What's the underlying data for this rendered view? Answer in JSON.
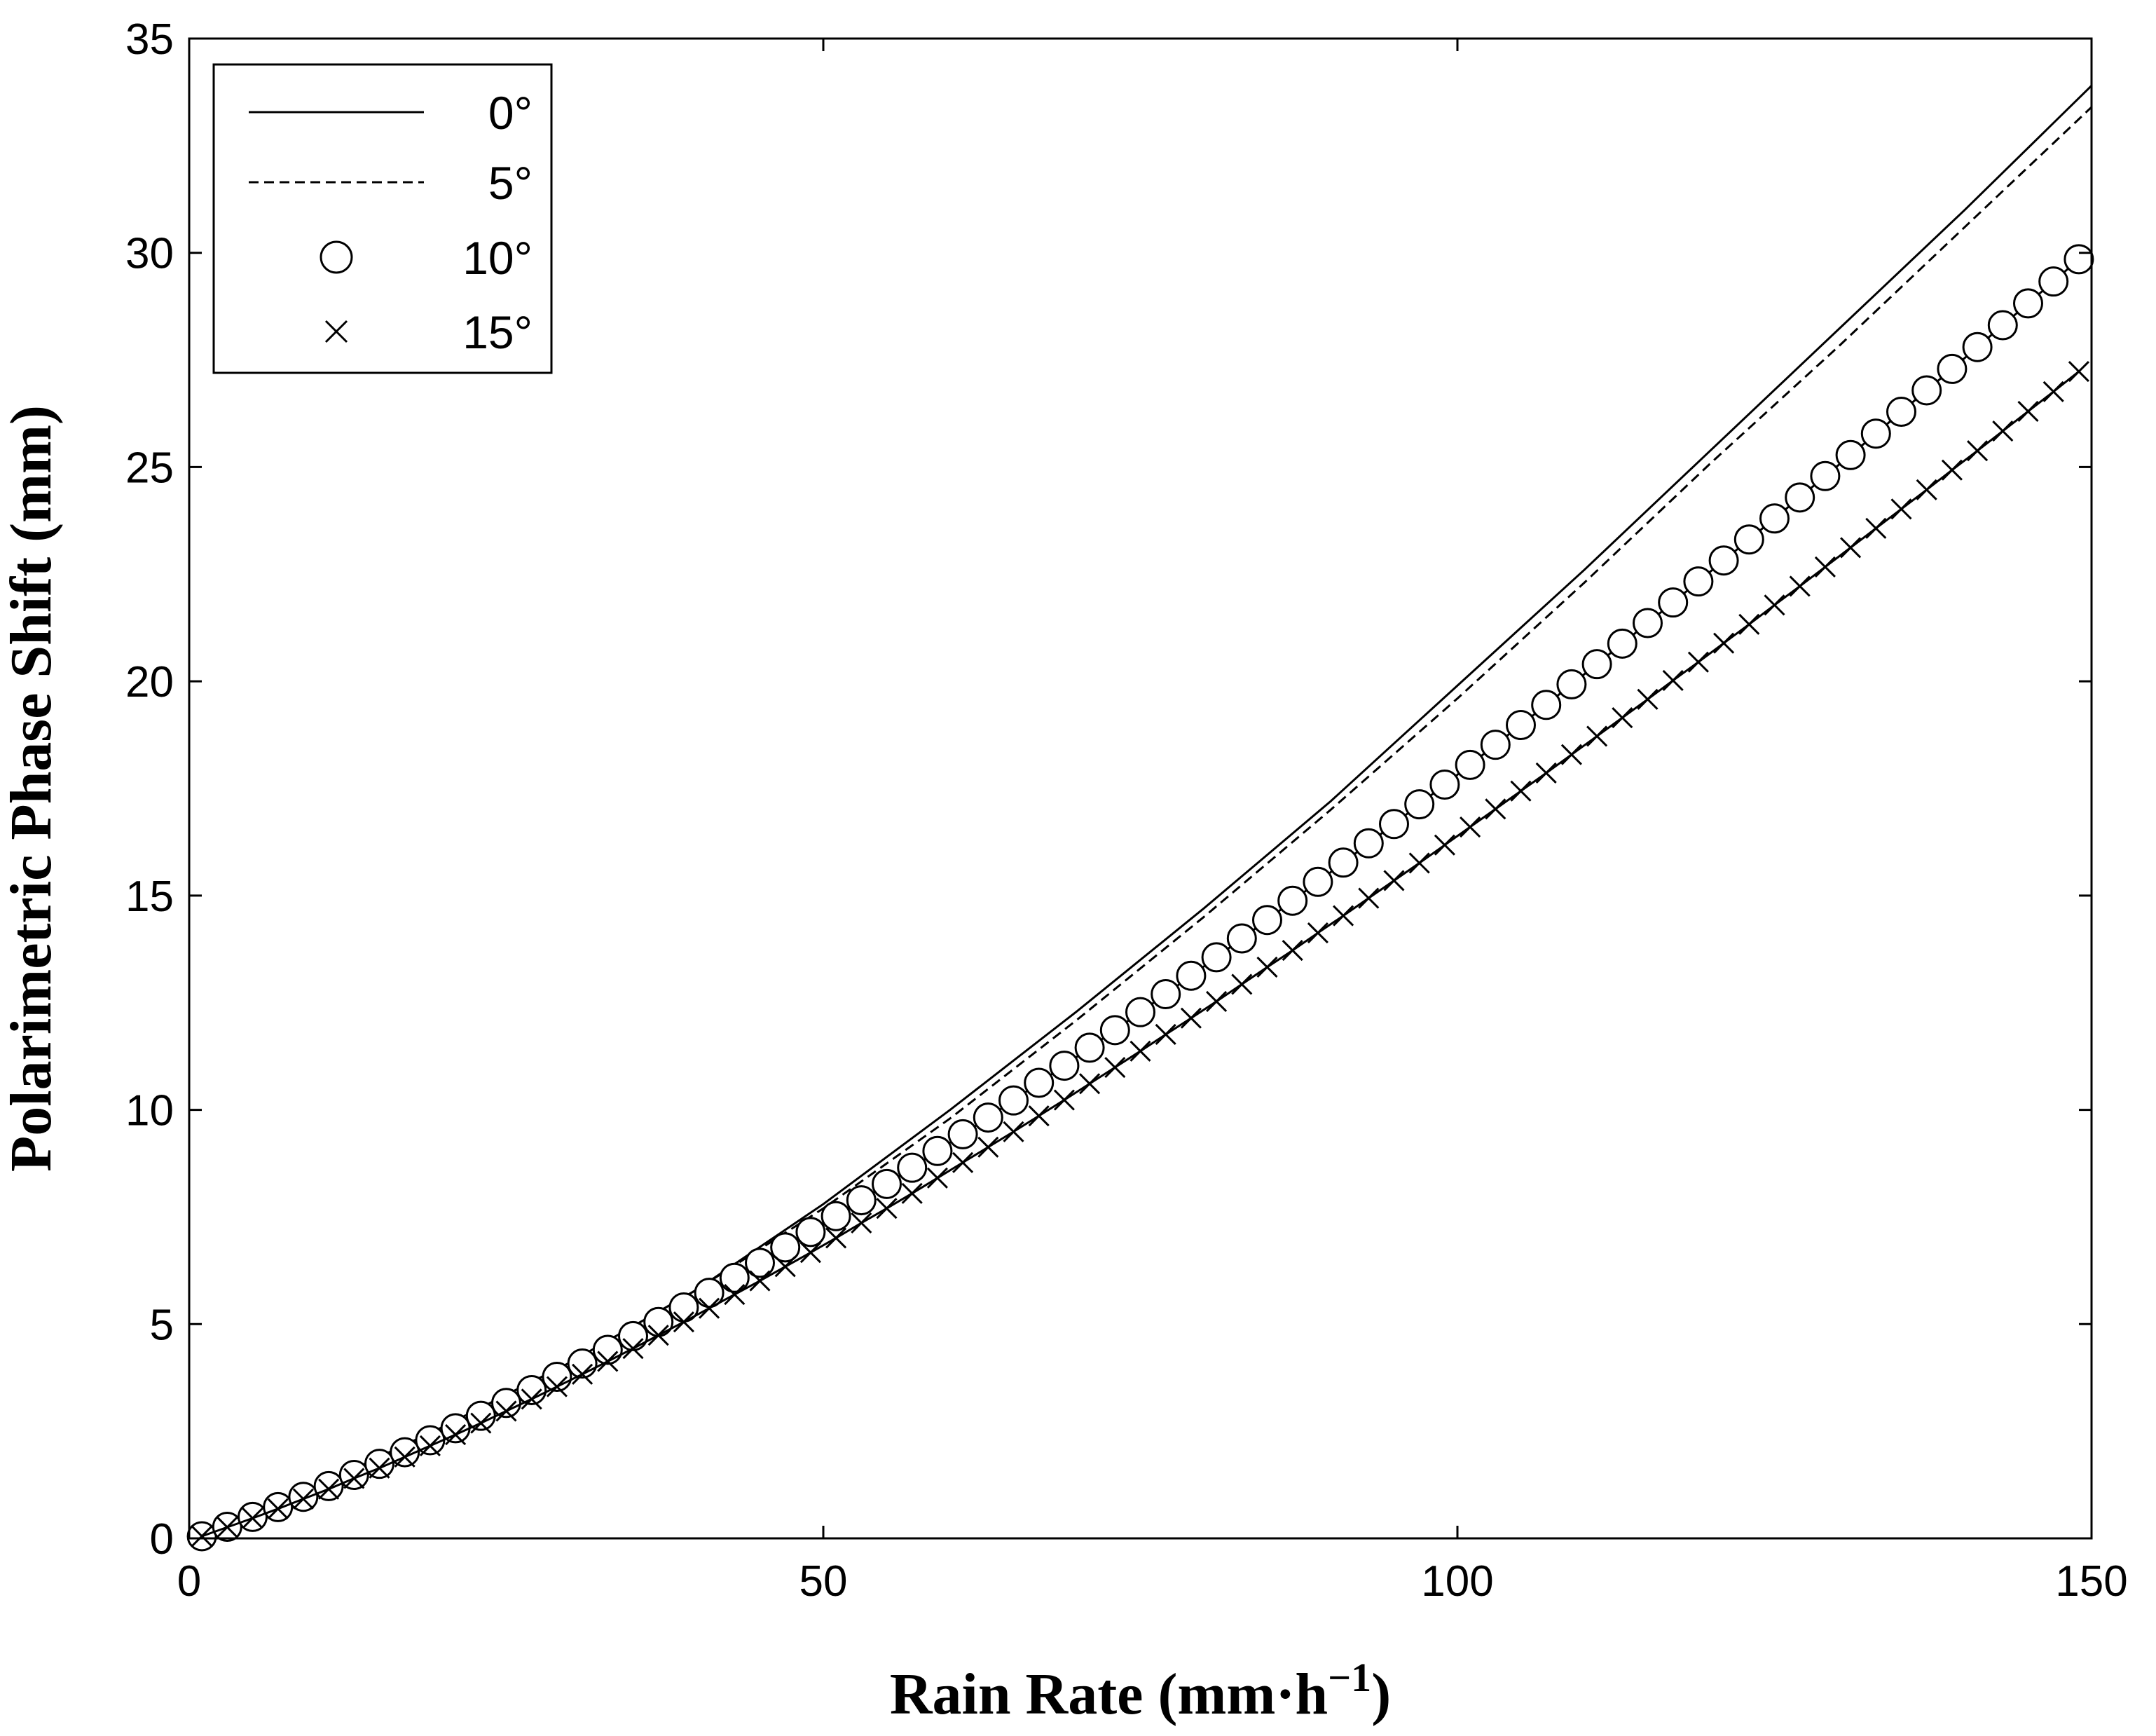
{
  "chart_data": {
    "type": "line",
    "xlabel": "Rain Rate (mm·h",
    "xlabel_superscript": "−1",
    "xlabel_suffix": ")",
    "ylabel": "Polarimetric Phase Shift (mm)",
    "xlim": [
      0,
      150
    ],
    "ylim": [
      0,
      35
    ],
    "x_ticks": [
      "0",
      "50",
      "100",
      "150"
    ],
    "y_ticks": [
      "0",
      "5",
      "10",
      "15",
      "20",
      "25",
      "30",
      "35"
    ],
    "grid": false,
    "legend_position": "top-left",
    "series": [
      {
        "name": "0°",
        "style": "solid",
        "x": [
          0,
          10,
          20,
          30,
          40,
          50,
          60,
          70,
          80,
          90,
          100,
          110,
          120,
          130,
          140,
          150
        ],
        "y": [
          0,
          1.2,
          2.6,
          4.1,
          5.8,
          7.8,
          10.0,
          12.3,
          14.7,
          17.2,
          19.9,
          22.6,
          25.4,
          28.2,
          31.0,
          33.9
        ]
      },
      {
        "name": "5°",
        "style": "dashed",
        "x": [
          0,
          10,
          20,
          30,
          40,
          50,
          60,
          70,
          80,
          90,
          100,
          110,
          120,
          130,
          140,
          150
        ],
        "y": [
          0,
          1.2,
          2.6,
          4.1,
          5.8,
          7.7,
          9.8,
          12.1,
          14.5,
          17.0,
          19.6,
          22.3,
          25.1,
          27.8,
          30.6,
          33.4
        ]
      },
      {
        "name": "10°",
        "style": "circle",
        "x": [
          1,
          3,
          5,
          7,
          9,
          11,
          13,
          15,
          17,
          19,
          21,
          23,
          25,
          27,
          29,
          31,
          33,
          35,
          37,
          39,
          41,
          43,
          45,
          47,
          49,
          51,
          53,
          55,
          57,
          59,
          61,
          63,
          65,
          67,
          69,
          71,
          73,
          75,
          77,
          79,
          81,
          83,
          85,
          87,
          89,
          91,
          93,
          95,
          97,
          99,
          101,
          103,
          105,
          107,
          109,
          111,
          113,
          115,
          117,
          119,
          121,
          123,
          125,
          127,
          129,
          131,
          133,
          135,
          137,
          139,
          141,
          143,
          145,
          147,
          149
        ],
        "y": [
          0.05,
          0.27,
          0.5,
          0.73,
          0.97,
          1.22,
          1.48,
          1.74,
          2.01,
          2.29,
          2.57,
          2.86,
          3.16,
          3.46,
          3.77,
          4.08,
          4.4,
          4.72,
          5.05,
          5.39,
          5.73,
          6.08,
          6.43,
          6.79,
          7.15,
          7.52,
          7.89,
          8.27,
          8.65,
          9.04,
          9.43,
          9.82,
          10.22,
          10.63,
          11.03,
          11.45,
          11.86,
          12.28,
          12.7,
          13.13,
          13.56,
          14.0,
          14.43,
          14.88,
          15.32,
          15.77,
          16.22,
          16.67,
          17.13,
          17.59,
          18.05,
          18.52,
          18.98,
          19.45,
          19.93,
          20.4,
          20.88,
          21.36,
          21.84,
          22.33,
          22.82,
          23.31,
          23.8,
          24.29,
          24.79,
          25.28,
          25.78,
          26.29,
          26.79,
          27.29,
          27.8,
          28.31,
          28.82,
          29.33,
          29.85
        ]
      },
      {
        "name": "15°",
        "style": "cross",
        "x": [
          1,
          3,
          5,
          7,
          9,
          11,
          13,
          15,
          17,
          19,
          21,
          23,
          25,
          27,
          29,
          31,
          33,
          35,
          37,
          39,
          41,
          43,
          45,
          47,
          49,
          51,
          53,
          55,
          57,
          59,
          61,
          63,
          65,
          67,
          69,
          71,
          73,
          75,
          77,
          79,
          81,
          83,
          85,
          87,
          89,
          91,
          93,
          95,
          97,
          99,
          101,
          103,
          105,
          107,
          109,
          111,
          113,
          115,
          117,
          119,
          121,
          123,
          125,
          127,
          129,
          131,
          133,
          135,
          137,
          139,
          141,
          143,
          145,
          147,
          149
        ],
        "y": [
          0.05,
          0.26,
          0.47,
          0.69,
          0.92,
          1.15,
          1.4,
          1.64,
          1.9,
          2.16,
          2.42,
          2.69,
          2.97,
          3.25,
          3.54,
          3.83,
          4.13,
          4.43,
          4.74,
          5.05,
          5.37,
          5.69,
          6.01,
          6.34,
          6.67,
          7.01,
          7.36,
          7.7,
          8.05,
          8.41,
          8.77,
          9.13,
          9.49,
          9.86,
          10.23,
          10.61,
          10.99,
          11.37,
          11.76,
          12.14,
          12.53,
          12.93,
          13.33,
          13.72,
          14.13,
          14.53,
          14.94,
          15.35,
          15.76,
          16.18,
          16.6,
          17.02,
          17.44,
          17.86,
          18.29,
          18.72,
          19.15,
          19.58,
          20.02,
          20.45,
          20.89,
          21.33,
          21.78,
          22.22,
          22.67,
          23.12,
          23.57,
          24.02,
          24.47,
          24.93,
          25.38,
          25.84,
          26.3,
          26.76,
          27.23
        ]
      }
    ]
  }
}
